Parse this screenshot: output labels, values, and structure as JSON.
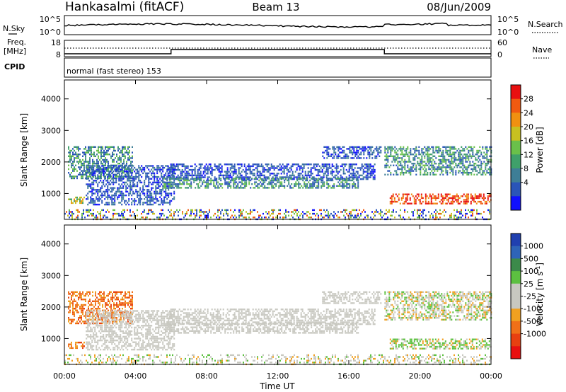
{
  "header": {
    "station": "Hankasalmi (fitACF)",
    "beam": "Beam 13",
    "date": "08/Jun/2009"
  },
  "noise_panel": {
    "left_label": "N.Sky",
    "right_label": "N.Search",
    "y_ticks_left": [
      "10^5",
      "10^0"
    ],
    "y_ticks_right": [
      "10^5",
      "10^0"
    ]
  },
  "freq_panel": {
    "left_label_1": "Freq.",
    "left_label_2": "[MHz]",
    "right_label": "Nave",
    "y_ticks_left": [
      "18",
      "8"
    ],
    "y_ticks_right": [
      "60",
      "0"
    ],
    "freq_steps": [
      {
        "start_hour": 0,
        "end_hour": 6,
        "level": "low"
      },
      {
        "start_hour": 6,
        "end_hour": 18,
        "level": "high"
      },
      {
        "start_hour": 18,
        "end_hour": 24,
        "level": "low"
      }
    ]
  },
  "cpid_panel": {
    "label": "CPID",
    "mode": "normal (fast stereo) 153"
  },
  "x_axis": {
    "label": "Time UT",
    "ticks": [
      "00:00",
      "04:00",
      "08:00",
      "12:00",
      "16:00",
      "20:00",
      "00:00"
    ]
  },
  "power_panel": {
    "ylabel": "Slant Range [km]",
    "cbar_label": "Power [dB]",
    "colorbar": {
      "colors": [
        "#1010ff",
        "#2a55b8",
        "#3e7e96",
        "#3fa06a",
        "#6ac04a",
        "#c8c020",
        "#f09010",
        "#f05a10",
        "#e81010"
      ],
      "ticks": [
        "4",
        "8",
        "12",
        "16",
        "20",
        "24",
        "28"
      ]
    }
  },
  "velocity_panel": {
    "ylabel": "Slant Range [km]",
    "cbar_label": "Velocity [m s",
    "cbar_unit_sup": "-1",
    "cbar_unit_close": "]",
    "colorbar": {
      "colors": [
        "#2040b0",
        "#2e64b8",
        "#3c8a4a",
        "#5cc040",
        "#c8c8c0",
        "#c8c8c0",
        "#f0a020",
        "#f07018",
        "#e84010",
        "#e81010"
      ],
      "ticks": [
        "1000",
        "500",
        "100",
        "25",
        "-25",
        "-100",
        "-500",
        "-1000"
      ]
    }
  },
  "chart_data": {
    "type": "heatmap",
    "title": "Hankasalmi (fitACF)",
    "x_range_hours": [
      0,
      24
    ],
    "y_range_km": [
      180,
      4600
    ],
    "y_ticks_km": [
      1000,
      2000,
      3000,
      4000
    ],
    "bands": [
      {
        "t0": 0.2,
        "t1": 1.1,
        "r0": 720,
        "r1": 900,
        "power": "orange",
        "velocity": "orange"
      },
      {
        "t0": 0.2,
        "t1": 3.8,
        "r0": 1500,
        "r1": 2500,
        "power": "blue-green",
        "velocity": "orange"
      },
      {
        "t0": 1.2,
        "t1": 6.2,
        "r0": 650,
        "r1": 1900,
        "power": "blue",
        "velocity": "grey"
      },
      {
        "t0": 5.8,
        "t1": 17.5,
        "r0": 1450,
        "r1": 1950,
        "power": "blue",
        "velocity": "grey"
      },
      {
        "t0": 5.5,
        "t1": 16.5,
        "r0": 1150,
        "r1": 1500,
        "power": "blue-green",
        "velocity": "grey"
      },
      {
        "t0": 14.5,
        "t1": 17.8,
        "r0": 2100,
        "r1": 2500,
        "power": "blue",
        "velocity": "grey"
      },
      {
        "t0": 18.0,
        "t1": 24.0,
        "r0": 1600,
        "r1": 2500,
        "power": "blue-green",
        "velocity": "mixed"
      },
      {
        "t0": 18.3,
        "t1": 24.0,
        "r0": 650,
        "r1": 1000,
        "power": "red",
        "velocity": "grey-green"
      },
      {
        "t0": 0.0,
        "t1": 24.0,
        "r0": 180,
        "r1": 500,
        "power": "noise",
        "velocity": "noise"
      }
    ]
  }
}
